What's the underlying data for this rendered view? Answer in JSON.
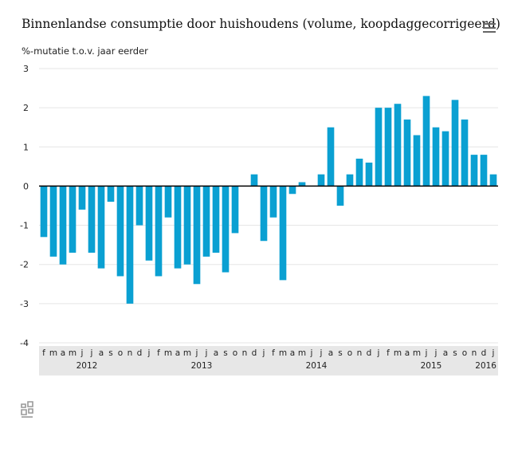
{
  "title": "Binnenlandse consumptie door huishoudens (volume, koopdaggecorrigeerd)",
  "unit_label": "%-mutatie t.o.v. jaar eerder",
  "menu_icon": "hamburger-menu-icon",
  "logo_icon": "cbs-logo-icon",
  "colors": {
    "bar": "#0aa0d2",
    "axis": "#000000",
    "grid": "#e5e5e5",
    "band": "#e7e7e7"
  },
  "chart_data": {
    "type": "bar",
    "title": "Binnenlandse consumptie door huishoudens (volume, koopdaggecorrigeerd)",
    "ylabel": "%-mutatie t.o.v. jaar eerder",
    "xlabel": "",
    "ylim": [
      -4,
      3
    ],
    "yticks": [
      -4,
      -3,
      -2,
      -1,
      0,
      1,
      2,
      3
    ],
    "grid": true,
    "categories": [
      "f",
      "m",
      "a",
      "m",
      "j",
      "j",
      "a",
      "s",
      "o",
      "n",
      "d",
      "j",
      "f",
      "m",
      "a",
      "m",
      "j",
      "j",
      "a",
      "s",
      "o",
      "n",
      "d",
      "j",
      "f",
      "m",
      "a",
      "m",
      "j",
      "j",
      "a",
      "s",
      "o",
      "n",
      "d",
      "j",
      "f",
      "m",
      "a",
      "m",
      "j",
      "j",
      "a",
      "s",
      "o",
      "n",
      "d",
      "j"
    ],
    "values": [
      -1.3,
      -1.8,
      -2.0,
      -1.7,
      -0.6,
      -1.7,
      -2.1,
      -0.4,
      -2.3,
      -3.0,
      -1.0,
      -1.9,
      -2.3,
      -0.8,
      -2.1,
      -2.0,
      -2.5,
      -1.8,
      -1.7,
      -2.2,
      -1.2,
      null,
      0.3,
      -1.4,
      -0.8,
      -2.4,
      -0.2,
      0.1,
      null,
      0.3,
      1.5,
      -0.5,
      0.3,
      0.7,
      0.6,
      2.0,
      2.0,
      2.1,
      1.7,
      1.3,
      2.3,
      1.5,
      1.4,
      2.2,
      1.7,
      0.8,
      0.8,
      0.3
    ],
    "years": [
      {
        "label": "2012",
        "index": 4.5
      },
      {
        "label": "2013",
        "index": 16.5
      },
      {
        "label": "2014",
        "index": 28.5
      },
      {
        "label": "2015",
        "index": 40.5
      },
      {
        "label": "2016",
        "index": 47
      }
    ]
  }
}
